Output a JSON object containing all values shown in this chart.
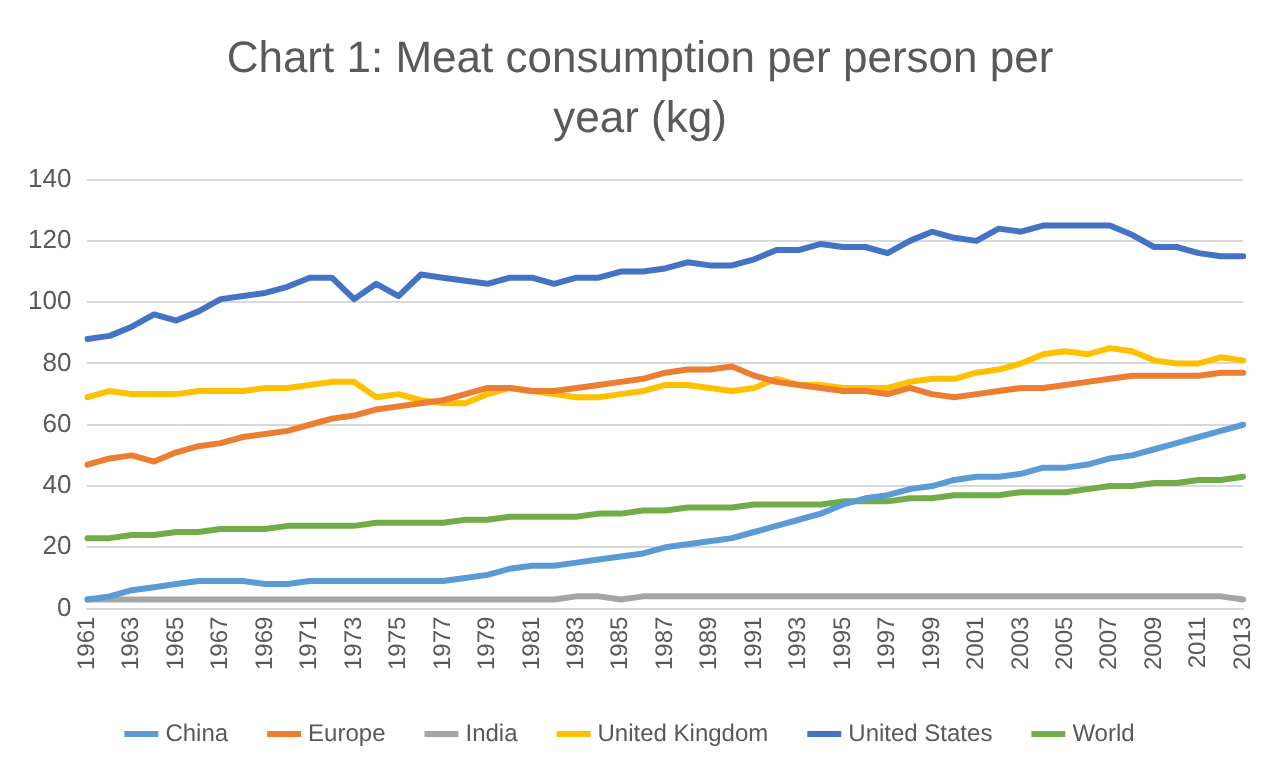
{
  "chart_data": {
    "type": "line",
    "title": "Chart 1: Meat consumption per person per year (kg)",
    "categories": [
      "1961",
      null,
      "1963",
      null,
      "1965",
      null,
      "1967",
      null,
      "1969",
      null,
      "1971",
      null,
      "1973",
      null,
      "1975",
      null,
      "1977",
      null,
      "1979",
      null,
      "1981",
      null,
      "1983",
      null,
      "1985",
      null,
      "1987",
      null,
      "1989",
      null,
      "1991",
      null,
      "1993",
      null,
      "1995",
      null,
      "1997",
      null,
      "1999",
      null,
      "2001",
      null,
      "2003",
      null,
      "2005",
      null,
      "2007",
      null,
      "2009",
      null,
      "2011",
      null,
      "2013"
    ],
    "series": [
      {
        "name": "China",
        "color": "#5b9bd5",
        "values": [
          3,
          4,
          6,
          7,
          8,
          9,
          9,
          9,
          8,
          8,
          9,
          9,
          9,
          9,
          9,
          9,
          9,
          10,
          11,
          13,
          14,
          14,
          15,
          16,
          17,
          18,
          20,
          21,
          22,
          23,
          25,
          27,
          29,
          31,
          34,
          36,
          37,
          39,
          40,
          42,
          43,
          43,
          44,
          46,
          46,
          47,
          49,
          50,
          52,
          54,
          56,
          58,
          60
        ]
      },
      {
        "name": "Europe",
        "color": "#ed7d31",
        "values": [
          47,
          49,
          50,
          48,
          51,
          53,
          54,
          56,
          57,
          58,
          60,
          62,
          63,
          65,
          66,
          67,
          68,
          70,
          72,
          72,
          71,
          71,
          72,
          73,
          74,
          75,
          77,
          78,
          78,
          79,
          76,
          74,
          73,
          72,
          71,
          71,
          70,
          72,
          70,
          69,
          70,
          71,
          72,
          72,
          73,
          74,
          75,
          76,
          76,
          76,
          76,
          77,
          77
        ]
      },
      {
        "name": "India",
        "color": "#a5a5a5",
        "values": [
          3,
          3,
          3,
          3,
          3,
          3,
          3,
          3,
          3,
          3,
          3,
          3,
          3,
          3,
          3,
          3,
          3,
          3,
          3,
          3,
          3,
          3,
          4,
          4,
          3,
          4,
          4,
          4,
          4,
          4,
          4,
          4,
          4,
          4,
          4,
          4,
          4,
          4,
          4,
          4,
          4,
          4,
          4,
          4,
          4,
          4,
          4,
          4,
          4,
          4,
          4,
          4,
          3
        ]
      },
      {
        "name": "United Kingdom",
        "color": "#ffc000",
        "values": [
          69,
          71,
          70,
          70,
          70,
          71,
          71,
          71,
          72,
          72,
          73,
          74,
          74,
          69,
          70,
          68,
          67,
          67,
          70,
          72,
          71,
          70,
          69,
          69,
          70,
          71,
          73,
          73,
          72,
          71,
          72,
          75,
          73,
          73,
          72,
          72,
          72,
          74,
          75,
          75,
          77,
          78,
          80,
          83,
          84,
          83,
          85,
          84,
          81,
          80,
          80,
          82,
          81
        ]
      },
      {
        "name": "United States",
        "color": "#4472c4",
        "values": [
          88,
          89,
          92,
          96,
          94,
          97,
          101,
          102,
          103,
          105,
          108,
          108,
          101,
          106,
          102,
          109,
          108,
          107,
          106,
          108,
          108,
          106,
          108,
          108,
          110,
          110,
          111,
          113,
          112,
          112,
          114,
          117,
          117,
          119,
          118,
          118,
          116,
          120,
          123,
          121,
          120,
          124,
          123,
          125,
          125,
          125,
          125,
          122,
          118,
          118,
          116,
          115,
          115
        ]
      },
      {
        "name": "World",
        "color": "#70ad47",
        "values": [
          23,
          23,
          24,
          24,
          25,
          25,
          26,
          26,
          26,
          27,
          27,
          27,
          27,
          28,
          28,
          28,
          28,
          29,
          29,
          30,
          30,
          30,
          30,
          31,
          31,
          32,
          32,
          33,
          33,
          33,
          34,
          34,
          34,
          34,
          35,
          35,
          35,
          36,
          36,
          37,
          37,
          37,
          38,
          38,
          38,
          39,
          40,
          40,
          41,
          41,
          42,
          42,
          43
        ]
      }
    ],
    "ylim": [
      0,
      140
    ],
    "yticks": [
      0,
      20,
      40,
      60,
      80,
      100,
      120,
      140
    ],
    "grid": "y",
    "legend": "bottom",
    "marker": "none",
    "line_style": "solid"
  }
}
